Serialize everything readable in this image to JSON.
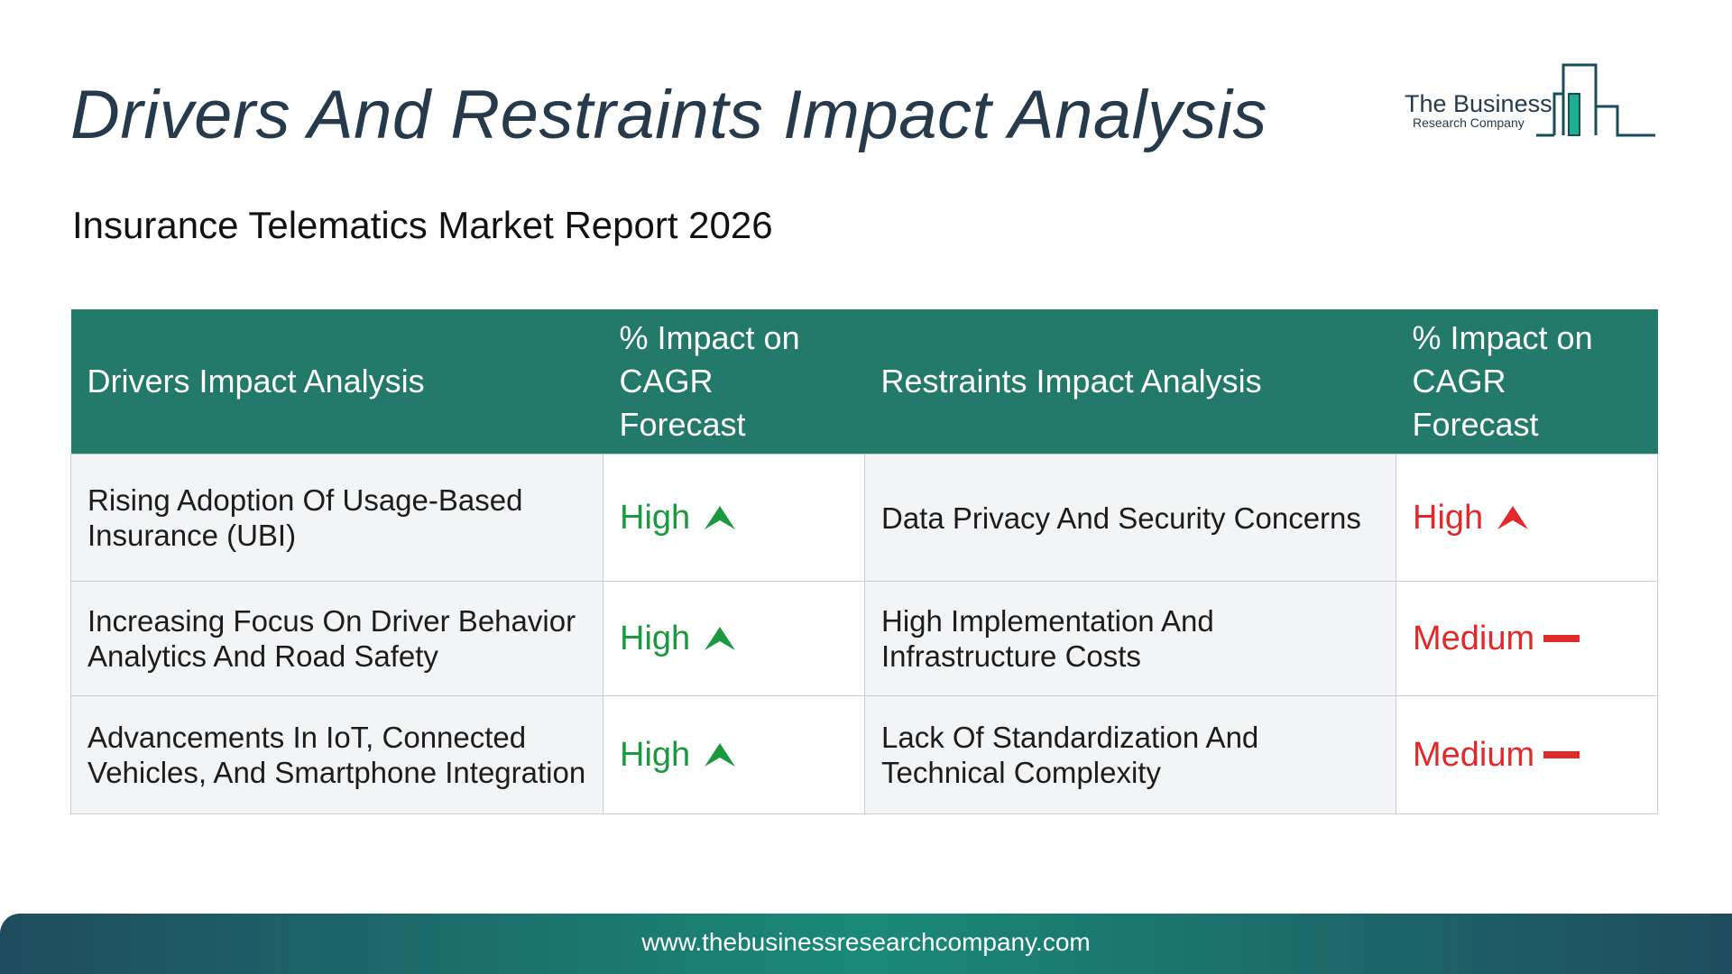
{
  "header": {
    "title": "Drivers And Restraints Impact Analysis",
    "subtitle": "Insurance Telematics Market Report 2026"
  },
  "logo": {
    "line1": "The Business",
    "line2": "Research Company"
  },
  "table": {
    "headers": {
      "drivers": "Drivers Impact Analysis",
      "drivers_impact": "% Impact on CAGR Forecast",
      "restraints": "Restraints Impact Analysis",
      "restraints_impact": "% Impact on CAGR Forecast"
    },
    "rows": [
      {
        "driver": "Rising Adoption Of Usage-Based Insurance (UBI)",
        "driver_impact": "High",
        "restraint": "Data Privacy And Security Concerns",
        "restraint_impact": "High"
      },
      {
        "driver": "Increasing Focus On Driver Behavior Analytics And Road Safety",
        "driver_impact": "High",
        "restraint": "High Implementation And Infrastructure Costs",
        "restraint_impact": "Medium"
      },
      {
        "driver": "Advancements In IoT, Connected Vehicles, And Smartphone Integration",
        "driver_impact": "High",
        "restraint": "Lack Of Standardization And Technical Complexity",
        "restraint_impact": "Medium"
      }
    ]
  },
  "colors": {
    "header_bg": "#247a6a",
    "positive": "#1b9940",
    "negative": "#e02a2a",
    "title": "#263a4b"
  },
  "icons": {
    "high_driver": "up-arrow-icon",
    "high_restraint": "up-arrow-icon",
    "medium_restraint": "dash-icon"
  },
  "footer": {
    "url": "www.thebusinessresearchcompany.com"
  }
}
